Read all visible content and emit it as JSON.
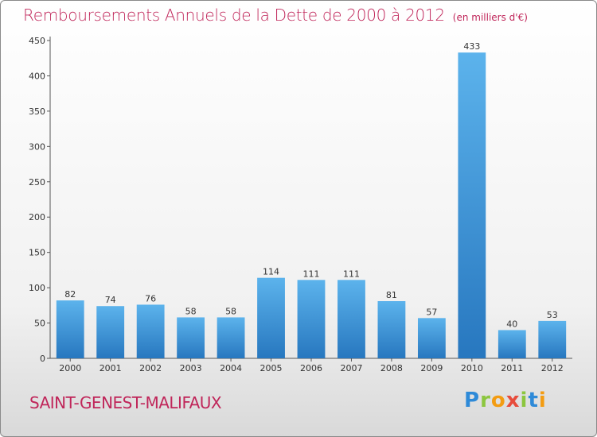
{
  "title": "Remboursements Annuels de la Dette de 2000 à 2012",
  "subtitle": "(en milliers d'€)",
  "commune": "SAINT-GENEST-MALIFAUX",
  "logo": {
    "letters": [
      "P",
      "r",
      "o",
      "x",
      "i",
      "t",
      "i"
    ],
    "colors": [
      "#2e8ad8",
      "#8cc63f",
      "#f39c12",
      "#e74c3c",
      "#8cc63f",
      "#2e8ad8",
      "#f39c12"
    ]
  },
  "colors": {
    "bar_light": "#5cb3ec",
    "bar_dark": "#2777bf",
    "title": "#c0265a"
  },
  "chart_data": {
    "type": "bar",
    "categories": [
      "2000",
      "2001",
      "2002",
      "2003",
      "2004",
      "2005",
      "2006",
      "2007",
      "2008",
      "2009",
      "2010",
      "2011",
      "2012"
    ],
    "values": [
      82,
      74,
      76,
      58,
      58,
      114,
      111,
      111,
      81,
      57,
      433,
      40,
      53
    ],
    "yticks": [
      0,
      50,
      100,
      150,
      200,
      250,
      300,
      350,
      400,
      450
    ],
    "ylim": [
      0,
      450
    ],
    "grid": false
  }
}
